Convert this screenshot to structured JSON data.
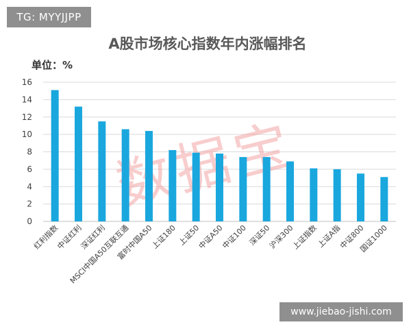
{
  "watermark_top_left": "TG: MYYJJPP",
  "watermark_bottom_right": "www.jiebao-jishi.com",
  "watermark_center": "数据宝",
  "colors": {
    "bar": "#1aa7de",
    "grid": "#d9d9d9",
    "title": "#595959",
    "text": "#404040",
    "watermark": "#f4a5a5"
  },
  "chart_data": {
    "type": "bar",
    "title": "A股市场核心指数年内涨幅排名",
    "unit_label": "单位：%",
    "xlabel": "",
    "ylabel": "",
    "ylim": [
      0,
      16
    ],
    "yticks": [
      0,
      2,
      4,
      6,
      8,
      10,
      12,
      14,
      16
    ],
    "grid": true,
    "legend": "none",
    "categories": [
      "红利指数",
      "中证红利",
      "深证红利",
      "MSCI中国A50互联互通",
      "富时中国A50",
      "上证180",
      "上证50",
      "中证A50",
      "中证100",
      "深证50",
      "沪深300",
      "上证指数",
      "上证A指",
      "中证800",
      "国证1000"
    ],
    "values": [
      15.1,
      13.2,
      11.5,
      10.6,
      10.4,
      8.2,
      7.9,
      7.8,
      7.4,
      7.4,
      6.9,
      6.1,
      6.0,
      5.5,
      5.1
    ]
  }
}
